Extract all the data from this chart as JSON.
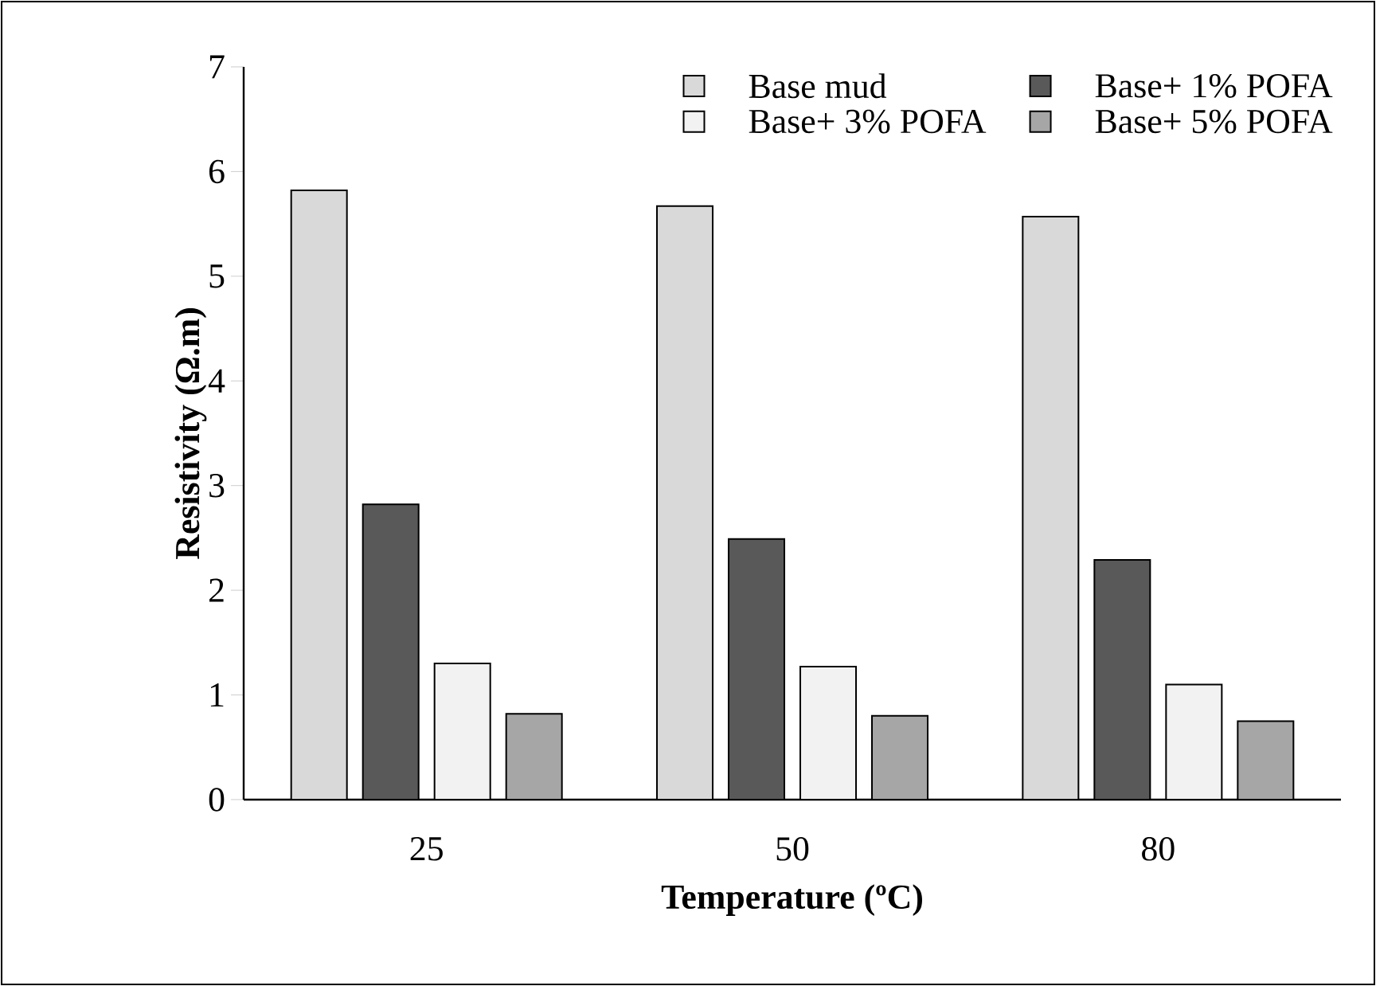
{
  "chart_data": {
    "type": "bar",
    "xlabel": "Temperature (ºC)",
    "ylabel": "Resistivity (Ω.m)",
    "categories": [
      "25",
      "50",
      "80"
    ],
    "series": [
      {
        "name": "Base mud",
        "color": "#d9d9d9",
        "values": [
          5.82,
          5.67,
          5.57
        ]
      },
      {
        "name": "Base+ 1% POFA",
        "color": "#595959",
        "values": [
          2.82,
          2.49,
          2.29
        ]
      },
      {
        "name": "Base+ 3% POFA",
        "color": "#f2f2f2",
        "values": [
          1.3,
          1.27,
          1.1
        ]
      },
      {
        "name": "Base+ 5% POFA",
        "color": "#a6a6a6",
        "values": [
          0.82,
          0.8,
          0.75
        ]
      }
    ],
    "ylim": [
      0,
      7
    ],
    "yticks": [
      0,
      1,
      2,
      3,
      4,
      5,
      6,
      7
    ],
    "grid": false,
    "legend": "top right"
  }
}
